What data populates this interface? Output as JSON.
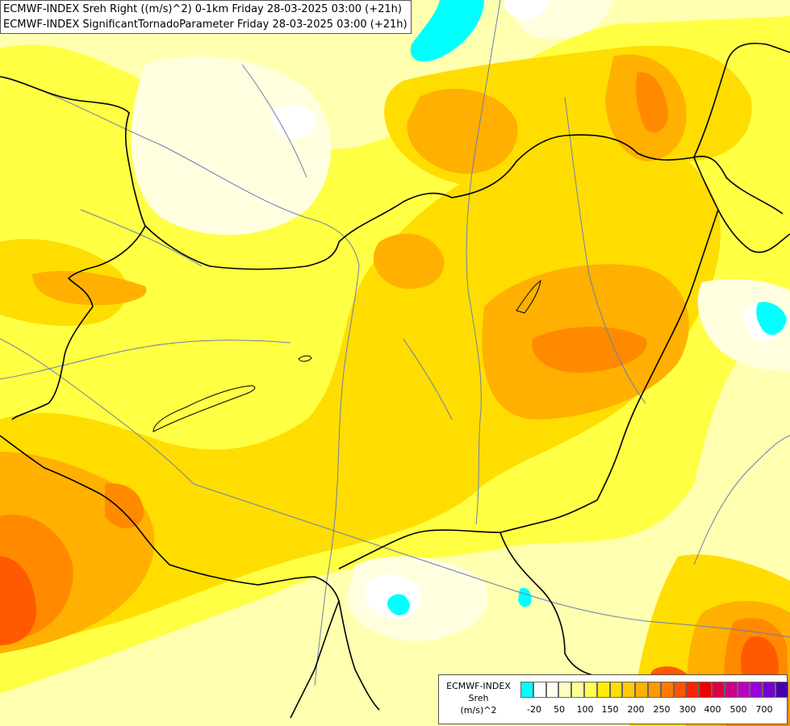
{
  "titles": {
    "line1": "ECMWF-INDEX Sreh Right ((m/s)^2) 0-1km Friday 28-03-2025 03:00 (+21h)",
    "line2": "ECMWF-INDEX SignificantTornadoParameter Friday 28-03-2025 03:00 (+21h)"
  },
  "legend": {
    "name_line1": "ECMWF-INDEX",
    "name_line2": "Sreh",
    "name_line3": "(m/s)^2",
    "colors": [
      "#00ffff",
      "#ffffff",
      "#fffff0",
      "#ffffc0",
      "#ffff99",
      "#ffff55",
      "#ffee00",
      "#ffdd00",
      "#ffcc00",
      "#ffb000",
      "#ff9900",
      "#ff7a00",
      "#ff5500",
      "#ff2200",
      "#ee0000",
      "#dd0044",
      "#cc0088",
      "#bb00bb",
      "#9900dd",
      "#7700cc",
      "#4400aa"
    ],
    "tick_labels": [
      "-20",
      "50",
      "100",
      "150",
      "200",
      "250",
      "300",
      "400",
      "500",
      "700"
    ]
  }
}
